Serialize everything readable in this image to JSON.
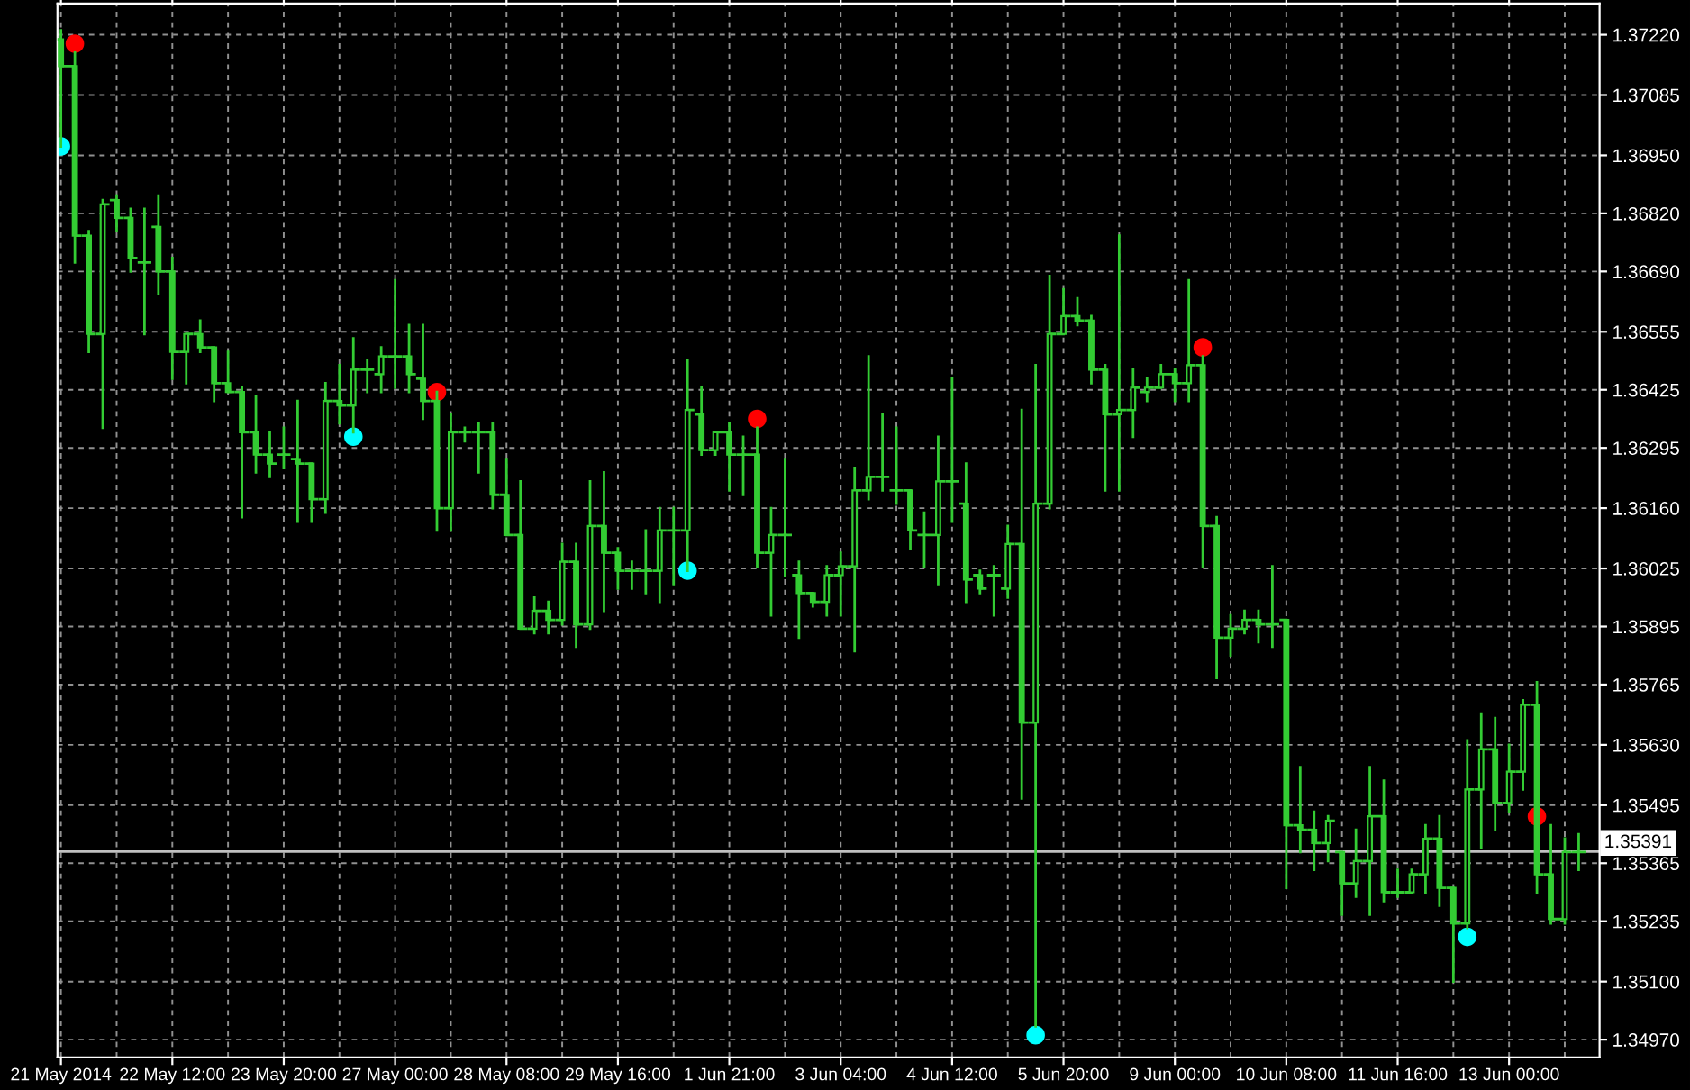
{
  "chart_data": {
    "type": "candlestick",
    "color": "#33cc33",
    "categories": [
      "21 May 2014",
      null,
      null,
      null,
      null,
      null,
      null,
      null,
      "22 May 12:00",
      null,
      null,
      null,
      null,
      null,
      null,
      null,
      "23 May 20:00",
      null,
      null,
      null,
      null,
      null,
      null,
      null,
      "27 May 00:00",
      null,
      null,
      null,
      null,
      null,
      null,
      null,
      "28 May 08:00",
      null,
      null,
      null,
      null,
      null,
      null,
      null,
      "29 May 16:00",
      null,
      null,
      null,
      null,
      null,
      null,
      null,
      "1 Jun 21:00",
      null,
      null,
      null,
      null,
      null,
      null,
      null,
      "3 Jun 04:00",
      null,
      null,
      null,
      null,
      null,
      null,
      null,
      "4 Jun 12:00",
      null,
      null,
      null,
      null,
      null,
      null,
      null,
      "5 Jun 20:00",
      null,
      null,
      null,
      null,
      null,
      null,
      null,
      "9 Jun 00:00",
      null,
      null,
      null,
      null,
      null,
      null,
      null,
      "10 Jun 08:00",
      null,
      null,
      null,
      null,
      null,
      null,
      null,
      "11 Jun 16:00",
      null,
      null,
      null,
      null,
      null,
      null,
      null,
      "13 Jun 00:00",
      null,
      null,
      null,
      null,
      null
    ],
    "ohlc": [
      [
        1.3721,
        1.3723,
        1.3697,
        1.3715
      ],
      [
        1.3715,
        1.3718,
        1.3671,
        1.3677
      ],
      [
        1.3677,
        1.3678,
        1.3651,
        1.3655
      ],
      [
        1.3655,
        1.3685,
        1.3634,
        1.3684
      ],
      [
        1.3685,
        1.3686,
        1.3678,
        1.3681
      ],
      [
        1.3681,
        1.3683,
        1.3669,
        1.3672
      ],
      [
        1.3671,
        1.3683,
        1.3655,
        1.3671
      ],
      [
        1.3679,
        1.3686,
        1.3664,
        1.3669
      ],
      [
        1.3669,
        1.3672,
        1.3645,
        1.3651
      ],
      [
        1.3651,
        1.3655,
        1.3644,
        1.3655
      ],
      [
        1.3655,
        1.3658,
        1.3651,
        1.3652
      ],
      [
        1.3652,
        1.3652,
        1.364,
        1.3644
      ],
      [
        1.3644,
        1.3651,
        1.3642,
        1.3642
      ],
      [
        1.3642,
        1.3643,
        1.3614,
        1.3633
      ],
      [
        1.3633,
        1.3641,
        1.3624,
        1.3628
      ],
      [
        1.3628,
        1.3633,
        1.3623,
        1.3626
      ],
      [
        1.3628,
        1.3634,
        1.3625,
        1.3628
      ],
      [
        1.3627,
        1.364,
        1.3613,
        1.3626
      ],
      [
        1.3626,
        1.3626,
        1.3613,
        1.3618
      ],
      [
        1.3618,
        1.3644,
        1.3615,
        1.364
      ],
      [
        1.364,
        1.3648,
        1.3635,
        1.3639
      ],
      [
        1.3639,
        1.3654,
        1.3633,
        1.3647
      ],
      [
        1.3647,
        1.3649,
        1.3642,
        1.3647
      ],
      [
        1.3646,
        1.3652,
        1.3642,
        1.365
      ],
      [
        1.365,
        1.3667,
        1.3643,
        1.365
      ],
      [
        1.365,
        1.3657,
        1.3642,
        1.3646
      ],
      [
        1.3645,
        1.3657,
        1.3636,
        1.364
      ],
      [
        1.364,
        1.3642,
        1.3611,
        1.3616
      ],
      [
        1.3616,
        1.3637,
        1.3611,
        1.3633
      ],
      [
        1.3633,
        1.3634,
        1.3631,
        1.3633
      ],
      [
        1.3633,
        1.3635,
        1.3624,
        1.3633
      ],
      [
        1.3633,
        1.3635,
        1.3616,
        1.3619
      ],
      [
        1.3619,
        1.3627,
        1.361,
        1.361
      ],
      [
        1.361,
        1.3622,
        1.3589,
        1.3589
      ],
      [
        1.3589,
        1.3596,
        1.3588,
        1.3593
      ],
      [
        1.3593,
        1.3595,
        1.3588,
        1.3591
      ],
      [
        1.3591,
        1.3608,
        1.359,
        1.3604
      ],
      [
        1.3604,
        1.3608,
        1.3585,
        1.359
      ],
      [
        1.359,
        1.3622,
        1.3589,
        1.3612
      ],
      [
        1.3612,
        1.3624,
        1.3593,
        1.3606
      ],
      [
        1.3606,
        1.3607,
        1.3598,
        1.3602
      ],
      [
        1.3602,
        1.3604,
        1.3598,
        1.3602
      ],
      [
        1.3602,
        1.3611,
        1.3597,
        1.3602
      ],
      [
        1.3602,
        1.3616,
        1.3595,
        1.3611
      ],
      [
        1.3611,
        1.3616,
        1.3599,
        1.3611
      ],
      [
        1.3611,
        1.3649,
        1.3602,
        1.3638
      ],
      [
        1.3637,
        1.3643,
        1.3628,
        1.3629
      ],
      [
        1.3629,
        1.3633,
        1.3628,
        1.3633
      ],
      [
        1.3633,
        1.3635,
        1.362,
        1.3628
      ],
      [
        1.3628,
        1.3632,
        1.3619,
        1.3628
      ],
      [
        1.3628,
        1.3634,
        1.3603,
        1.3606
      ],
      [
        1.3606,
        1.3616,
        1.3592,
        1.361
      ],
      [
        1.361,
        1.3627,
        1.3601,
        1.361
      ],
      [
        1.3601,
        1.3604,
        1.3587,
        1.3597
      ],
      [
        1.3597,
        1.3597,
        1.3594,
        1.3595
      ],
      [
        1.3595,
        1.3603,
        1.3592,
        1.3601
      ],
      [
        1.3601,
        1.3606,
        1.3592,
        1.3603
      ],
      [
        1.3603,
        1.3625,
        1.3584,
        1.362
      ],
      [
        1.362,
        1.365,
        1.3618,
        1.3623
      ],
      [
        1.3623,
        1.3637,
        1.362,
        1.3623
      ],
      [
        1.362,
        1.3634,
        1.3617,
        1.362
      ],
      [
        1.362,
        1.362,
        1.3607,
        1.3611
      ],
      [
        1.361,
        1.3615,
        1.3603,
        1.361
      ],
      [
        1.361,
        1.3632,
        1.3599,
        1.3622
      ],
      [
        1.3622,
        1.3645,
        1.3613,
        1.3622
      ],
      [
        1.3617,
        1.3626,
        1.3595,
        1.36
      ],
      [
        1.3601,
        1.3602,
        1.3597,
        1.3598
      ],
      [
        1.3601,
        1.3603,
        1.3592,
        1.3601
      ],
      [
        1.3598,
        1.3612,
        1.3596,
        1.3608
      ],
      [
        1.3608,
        1.3638,
        1.3551,
        1.3568
      ],
      [
        1.3568,
        1.3648,
        1.35,
        1.3617
      ],
      [
        1.3617,
        1.3668,
        1.3616,
        1.3655
      ],
      [
        1.3655,
        1.3665,
        1.3655,
        1.3659
      ],
      [
        1.3659,
        1.3663,
        1.3657,
        1.3658
      ],
      [
        1.3658,
        1.3659,
        1.3644,
        1.3647
      ],
      [
        1.3647,
        1.3648,
        1.362,
        1.3637
      ],
      [
        1.3637,
        1.3677,
        1.362,
        1.3638
      ],
      [
        1.3638,
        1.3647,
        1.3632,
        1.3643
      ],
      [
        1.3642,
        1.3645,
        1.364,
        1.3643
      ],
      [
        1.3643,
        1.3648,
        1.3643,
        1.3646
      ],
      [
        1.3646,
        1.3647,
        1.364,
        1.3644
      ],
      [
        1.3644,
        1.3667,
        1.364,
        1.3648
      ],
      [
        1.3648,
        1.365,
        1.3603,
        1.3612
      ],
      [
        1.3612,
        1.3614,
        1.3578,
        1.3587
      ],
      [
        1.3587,
        1.3592,
        1.3583,
        1.3589
      ],
      [
        1.3589,
        1.3593,
        1.3588,
        1.3591
      ],
      [
        1.3591,
        1.3593,
        1.3586,
        1.359
      ],
      [
        1.359,
        1.3603,
        1.3585,
        1.359
      ],
      [
        1.3591,
        1.3591,
        1.3531,
        1.3545
      ],
      [
        1.3545,
        1.3558,
        1.3539,
        1.3544
      ],
      [
        1.3544,
        1.3548,
        1.3535,
        1.3541
      ],
      [
        1.3541,
        1.3547,
        1.3537,
        1.3546
      ],
      [
        1.3539,
        1.3539,
        1.3525,
        1.3532
      ],
      [
        1.3532,
        1.3544,
        1.3529,
        1.3537
      ],
      [
        1.3537,
        1.3558,
        1.3525,
        1.3547
      ],
      [
        1.3547,
        1.3555,
        1.3528,
        1.353
      ],
      [
        1.353,
        1.3535,
        1.3529,
        1.353
      ],
      [
        1.353,
        1.3535,
        1.353,
        1.3534
      ],
      [
        1.3534,
        1.3545,
        1.353,
        1.3542
      ],
      [
        1.3542,
        1.3547,
        1.3527,
        1.3531
      ],
      [
        1.3531,
        1.3531,
        1.351,
        1.3523
      ],
      [
        1.3523,
        1.3564,
        1.3522,
        1.3553
      ],
      [
        1.3553,
        1.357,
        1.354,
        1.3562
      ],
      [
        1.3562,
        1.3569,
        1.3544,
        1.355
      ],
      [
        1.355,
        1.3563,
        1.3548,
        1.3557
      ],
      [
        1.3557,
        1.3573,
        1.3553,
        1.3572
      ],
      [
        1.3572,
        1.3577,
        1.353,
        1.3534
      ],
      [
        1.3534,
        1.3545,
        1.3523,
        1.3524
      ],
      [
        1.3524,
        1.3542,
        1.3523,
        1.3539
      ],
      [
        1.3539,
        1.3543,
        1.3535,
        1.3539
      ]
    ],
    "series": [
      {
        "type": "scatter",
        "color": "#ff0000",
        "values": [
          null,
          1.372,
          null,
          null,
          null,
          null,
          null,
          null,
          null,
          null,
          null,
          null,
          null,
          null,
          null,
          null,
          null,
          null,
          null,
          null,
          null,
          null,
          null,
          null,
          null,
          null,
          null,
          1.3642,
          null,
          null,
          null,
          null,
          null,
          null,
          null,
          null,
          null,
          null,
          null,
          null,
          null,
          null,
          null,
          null,
          null,
          null,
          null,
          null,
          null,
          null,
          1.3636,
          null,
          null,
          null,
          null,
          null,
          null,
          null,
          null,
          null,
          null,
          null,
          null,
          null,
          null,
          null,
          null,
          null,
          null,
          null,
          null,
          null,
          null,
          null,
          null,
          null,
          null,
          null,
          null,
          null,
          null,
          null,
          1.3652,
          null,
          null,
          null,
          null,
          null,
          null,
          null,
          null,
          null,
          null,
          null,
          null,
          null,
          null,
          null,
          null,
          null,
          null,
          null,
          null,
          null,
          null,
          null,
          1.3547,
          null,
          null,
          null
        ]
      },
      {
        "type": "scatter",
        "color": "#00ffff",
        "values": [
          1.3697,
          null,
          null,
          null,
          null,
          null,
          null,
          null,
          null,
          null,
          null,
          null,
          null,
          null,
          null,
          null,
          null,
          null,
          null,
          null,
          null,
          1.3632,
          null,
          null,
          null,
          null,
          null,
          null,
          null,
          null,
          null,
          null,
          null,
          null,
          null,
          null,
          null,
          null,
          null,
          null,
          null,
          null,
          null,
          null,
          null,
          1.3602,
          null,
          null,
          null,
          null,
          null,
          null,
          null,
          null,
          null,
          null,
          null,
          null,
          null,
          null,
          null,
          null,
          null,
          null,
          null,
          null,
          null,
          null,
          null,
          null,
          1.3498,
          null,
          null,
          null,
          null,
          null,
          null,
          null,
          null,
          null,
          null,
          null,
          null,
          null,
          null,
          null,
          null,
          null,
          null,
          null,
          null,
          null,
          null,
          null,
          null,
          null,
          null,
          null,
          null,
          null,
          null,
          1.352,
          null,
          null,
          null,
          null,
          null,
          null,
          null,
          null
        ]
      }
    ],
    "marker": "circle",
    "ylim": [
      1.3493,
      1.3729
    ],
    "yticks": [
      {
        "value": 1.3722,
        "label": "1.37220"
      },
      {
        "value": 1.37085,
        "label": "1.37085"
      },
      {
        "value": 1.3695,
        "label": "1.36950"
      },
      {
        "value": 1.3682,
        "label": "1.36820"
      },
      {
        "value": 1.3669,
        "label": "1.36690"
      },
      {
        "value": 1.36555,
        "label": "1.36555"
      },
      {
        "value": 1.36425,
        "label": "1.36425"
      },
      {
        "value": 1.36295,
        "label": "1.36295"
      },
      {
        "value": 1.3616,
        "label": "1.36160"
      },
      {
        "value": 1.36025,
        "label": "1.36025"
      },
      {
        "value": 1.35895,
        "label": "1.35895"
      },
      {
        "value": 1.35765,
        "label": "1.35765"
      },
      {
        "value": 1.3563,
        "label": "1.35630"
      },
      {
        "value": 1.35495,
        "label": "1.35495"
      },
      {
        "value": 1.35365,
        "label": "1.35365"
      },
      {
        "value": 1.35235,
        "label": "1.35235"
      },
      {
        "value": 1.351,
        "label": "1.35100"
      },
      {
        "value": 1.3497,
        "label": "1.34970"
      }
    ],
    "ref_lines": [
      {
        "axis": "y",
        "value": 1.35391,
        "label": "1.35391",
        "color": "#c0c0c0"
      }
    ],
    "grid": true
  }
}
